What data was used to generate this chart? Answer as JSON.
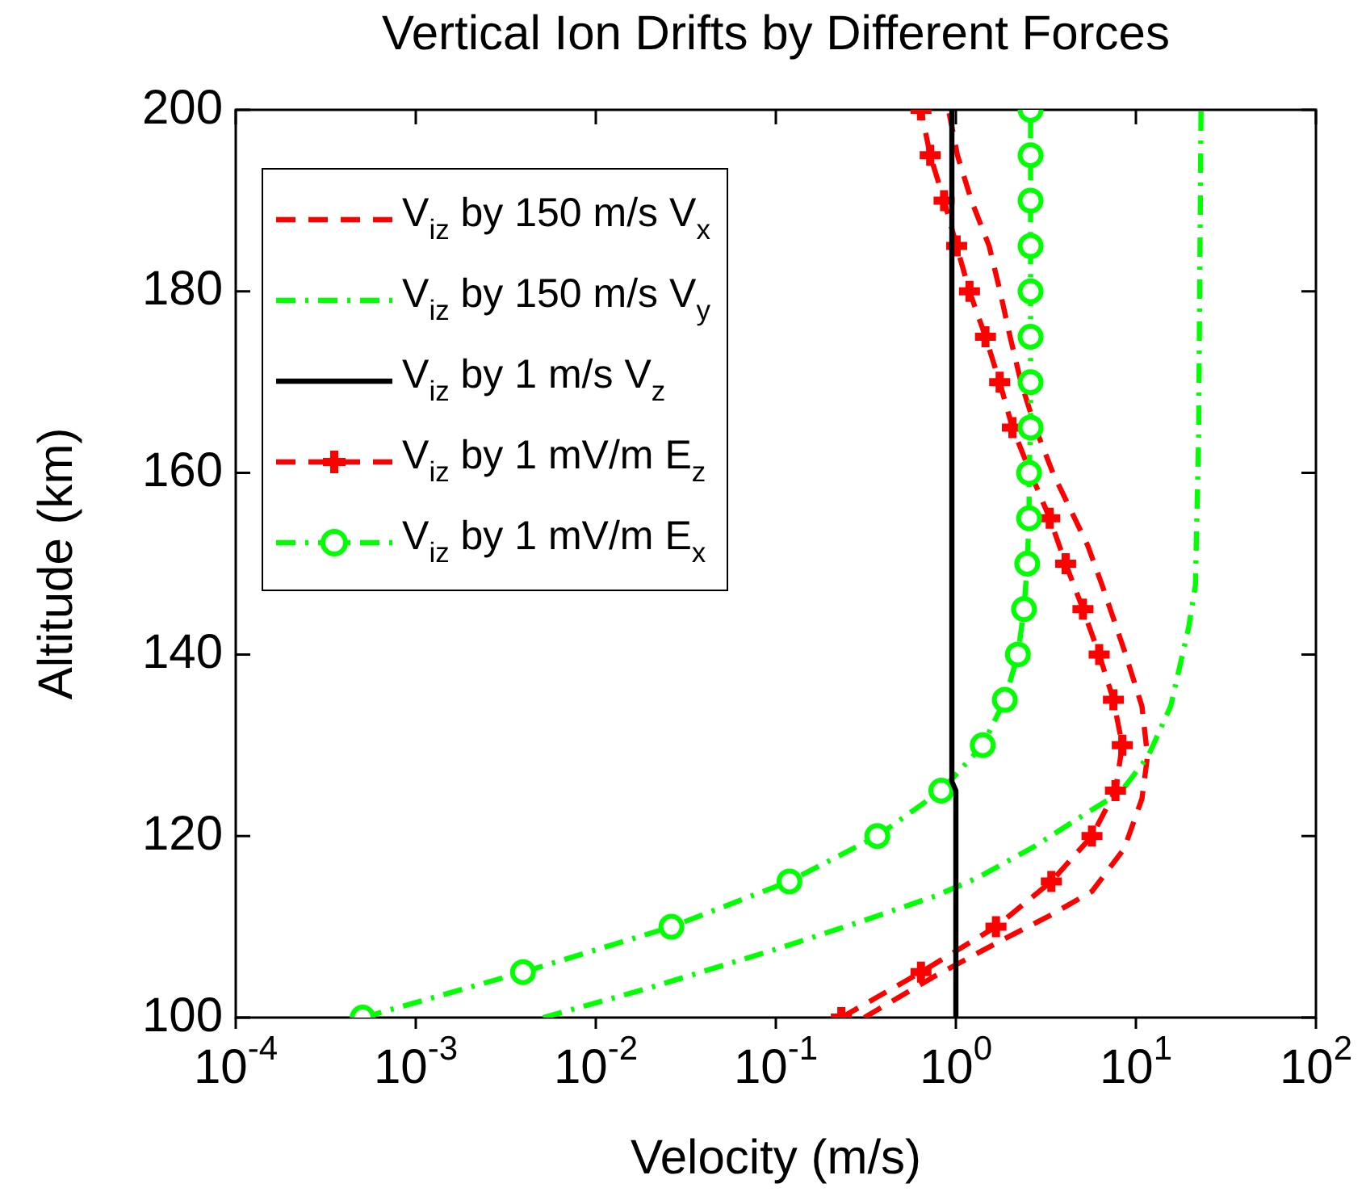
{
  "chart_data": {
    "type": "line",
    "title": "Vertical Ion Drifts by Different Forces",
    "xlabel": "Velocity (m/s)",
    "ylabel": "Altitude (km)",
    "log": "x",
    "legend": "top left",
    "xlim": [
      0.0001,
      100
    ],
    "ylim": [
      100,
      200
    ],
    "xticks": [
      {
        "value": 0.0001,
        "label": "10$^{-4}$"
      },
      {
        "value": 0.001,
        "label": "10$^{-3}$"
      },
      {
        "value": 0.01,
        "label": "10$^{-2}$"
      },
      {
        "value": 0.1,
        "label": "10$^{-1}$"
      },
      {
        "value": 1,
        "label": "10$^{0}$"
      },
      {
        "value": 10,
        "label": "10$^{1}$"
      },
      {
        "value": 100,
        "label": "10$^{2}$"
      }
    ],
    "yticks": [
      100,
      120,
      140,
      160,
      180,
      200
    ],
    "series": [
      {
        "name": "V$_{iz}$ by 150 m/s V$_{x}$",
        "color": "#ff0000",
        "line_style": "dashed",
        "marker": "none",
        "x": [
          0.31,
          0.77,
          1.75,
          3.3,
          5.7,
          8.6,
          10.8,
          11.6,
          10.8,
          8.6,
          6.5,
          5.4,
          3.46,
          2.76,
          2.3,
          2.0,
          1.76,
          1.53,
          1.22,
          1.02,
          0.91
        ],
        "values": [
          100,
          104.6,
          108.4,
          111.2,
          113.9,
          118.6,
          124.1,
          128.8,
          134.3,
          140.5,
          147.6,
          152,
          160,
          165,
          170,
          175,
          180,
          185,
          190,
          195,
          200
        ]
      },
      {
        "name": "V$_{iz}$ by 150 m/s V$_{y}$",
        "color": "#00ff00",
        "line_style": "dashdot",
        "marker": "none",
        "x": [
          0.0051,
          0.0201,
          0.103,
          0.31,
          0.77,
          1.32,
          2.76,
          5.2,
          8.2,
          11.7,
          15.6,
          19.6,
          21.4,
          22.3,
          23
        ],
        "values": [
          100,
          103.3,
          107.6,
          110.7,
          113.4,
          115.4,
          118.9,
          122.4,
          124.8,
          128.8,
          134.3,
          142.9,
          147.6,
          164,
          200
        ]
      },
      {
        "name": "V$_{iz}$ by 1 m/s V$_{z}$",
        "color": "#000000",
        "line_style": "solid",
        "marker": "none",
        "x": [
          1,
          1,
          0.95,
          0.95
        ],
        "values": [
          100,
          125,
          126,
          200
        ]
      },
      {
        "name": "V$_{iz}$ by 1 mV/m E$_{z}$",
        "color": "#ff0000",
        "line_style": "dashed",
        "marker": "cross",
        "x": [
          0.231,
          0.64,
          1.67,
          3.39,
          5.7,
          7.7,
          8.4,
          7.5,
          6.25,
          5.08,
          4.07,
          3.32,
          2.6,
          2.06,
          1.75,
          1.46,
          1.19,
          1.01,
          0.86,
          0.72,
          0.64
        ],
        "values": [
          100,
          105,
          110,
          115,
          120,
          125,
          130,
          135,
          140,
          145,
          150,
          155,
          160,
          165,
          170,
          175,
          180,
          185,
          190,
          195,
          200
        ]
      },
      {
        "name": "V$_{iz}$ by 1 mV/m E$_{x}$",
        "color": "#00ff00",
        "line_style": "dashdot",
        "marker": "circle",
        "x": [
          0.000507,
          0.00394,
          0.0263,
          0.119,
          0.366,
          0.83,
          1.41,
          1.87,
          2.21,
          2.39,
          2.49,
          2.55,
          2.55,
          2.6,
          2.6,
          2.6,
          2.6,
          2.6,
          2.6,
          2.6,
          2.6
        ],
        "values": [
          100,
          105,
          110,
          115,
          120,
          125,
          130,
          135,
          140,
          145,
          150,
          155,
          160,
          165,
          170,
          175,
          180,
          185,
          190,
          195,
          200
        ]
      }
    ]
  }
}
